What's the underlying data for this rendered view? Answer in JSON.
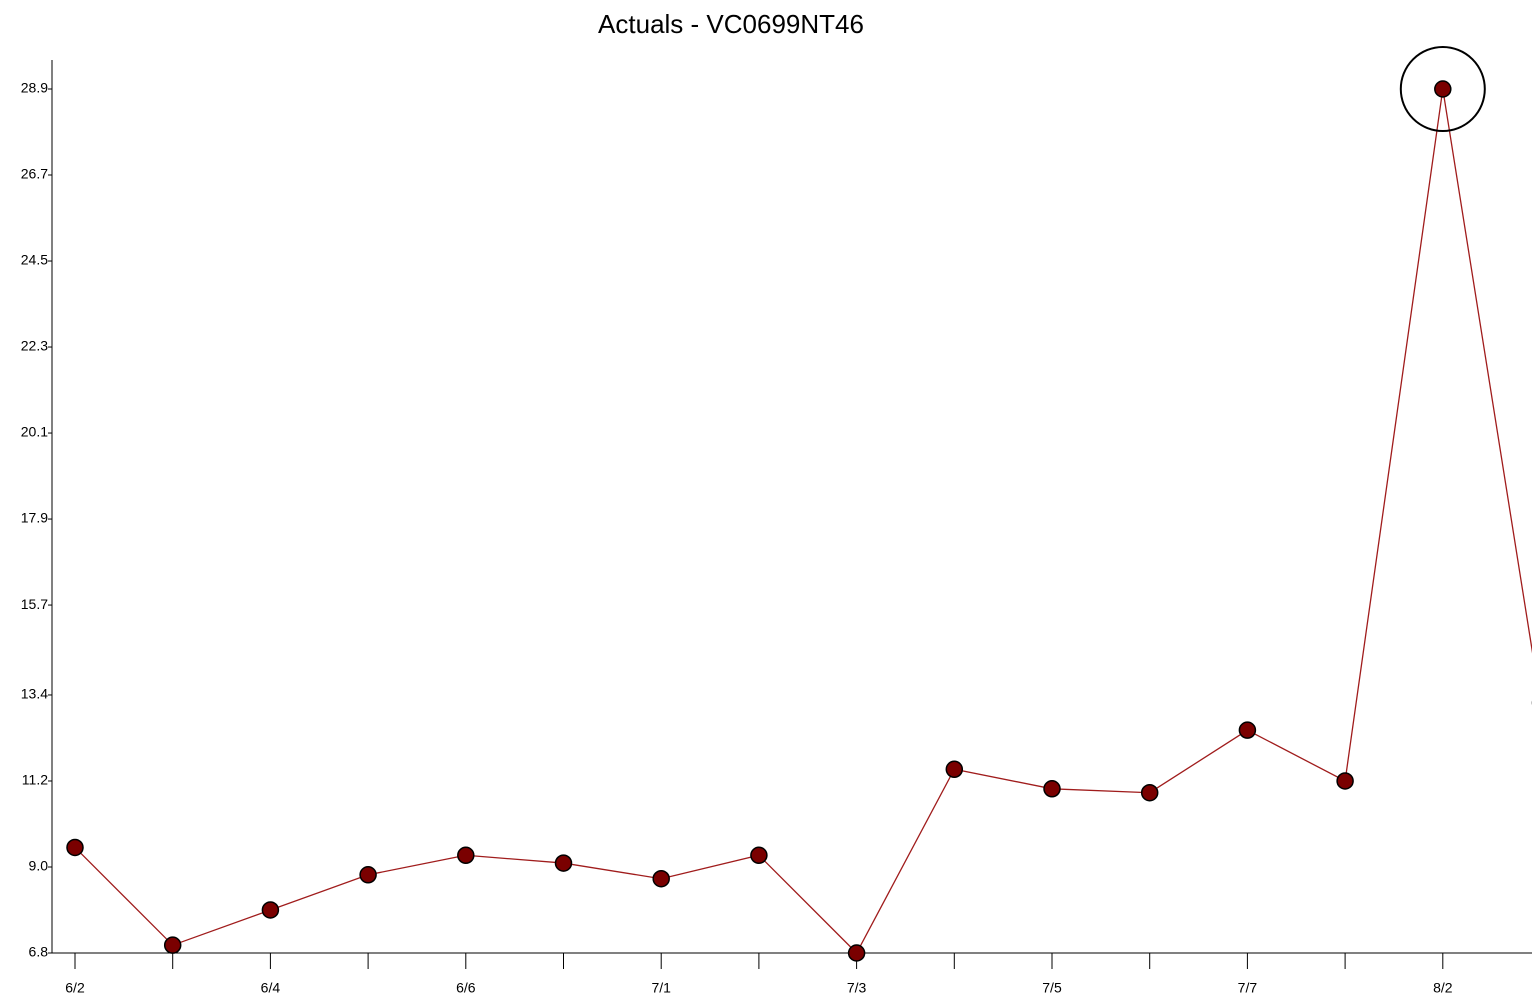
{
  "chart_data": {
    "type": "line",
    "title": "Actuals - VC0699NT46",
    "categories": [
      "6/2",
      null,
      "6/4",
      null,
      "6/6",
      null,
      "7/1",
      null,
      "7/3",
      null,
      "7/5",
      null,
      "7/7",
      null,
      "8/2",
      null
    ],
    "series": [
      {
        "name": "Actuals",
        "color": "#a01c1c",
        "marker_color": "#7a0000",
        "values": [
          9.5,
          7.0,
          7.9,
          8.8,
          9.3,
          9.1,
          8.7,
          9.3,
          6.8,
          11.5,
          11.0,
          10.9,
          12.5,
          11.2,
          28.9,
          13.2
        ]
      }
    ],
    "ylim": [
      6.8,
      28.9
    ],
    "yticks": [
      6.8,
      {
        "value": 9,
        "label": "9.0"
      },
      11.2,
      13.4,
      15.7,
      17.9,
      20.1,
      22.3,
      24.5,
      26.7,
      28.9
    ],
    "grid": false
  }
}
